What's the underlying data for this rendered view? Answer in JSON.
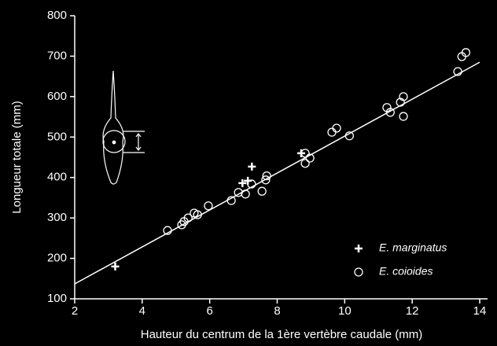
{
  "chart_data": {
    "type": "scatter",
    "xlabel": "Hauteur du centrum de la 1ère vertèbre caudale (mm)",
    "ylabel": "Longueur totale (mm)",
    "xlim": [
      2,
      14
    ],
    "xticks": [
      2,
      4,
      6,
      8,
      10,
      12,
      14
    ],
    "ylim": [
      100,
      800
    ],
    "yticks": [
      100,
      200,
      300,
      400,
      500,
      600,
      700,
      800
    ],
    "series": [
      {
        "name": "E. marginatus",
        "marker": "plus",
        "color": "#ffffff",
        "x": [
          3.2,
          6.97,
          7.13,
          7.25,
          8.71
        ],
        "values": [
          180,
          386,
          392,
          427,
          460
        ]
      },
      {
        "name": "E. coioides",
        "marker": "circle",
        "color": "#ffffff",
        "x": [
          4.75,
          5.17,
          5.24,
          5.36,
          5.54,
          5.64,
          5.96,
          6.64,
          6.85,
          7.06,
          7.24,
          7.55,
          7.66,
          7.69,
          8.83,
          8.83,
          8.97,
          9.62,
          9.76,
          10.14,
          11.25,
          11.35,
          11.65,
          11.74,
          11.74,
          13.35,
          13.47,
          13.59
        ],
        "values": [
          269,
          283,
          291,
          300,
          312,
          308,
          330,
          343,
          363,
          359,
          384,
          366,
          394,
          404,
          460,
          435,
          448,
          512,
          522,
          503,
          573,
          561,
          586,
          600,
          551,
          662,
          699,
          709
        ]
      }
    ],
    "fit": {
      "x": [
        2,
        14
      ],
      "values": [
        137,
        685
      ]
    }
  }
}
